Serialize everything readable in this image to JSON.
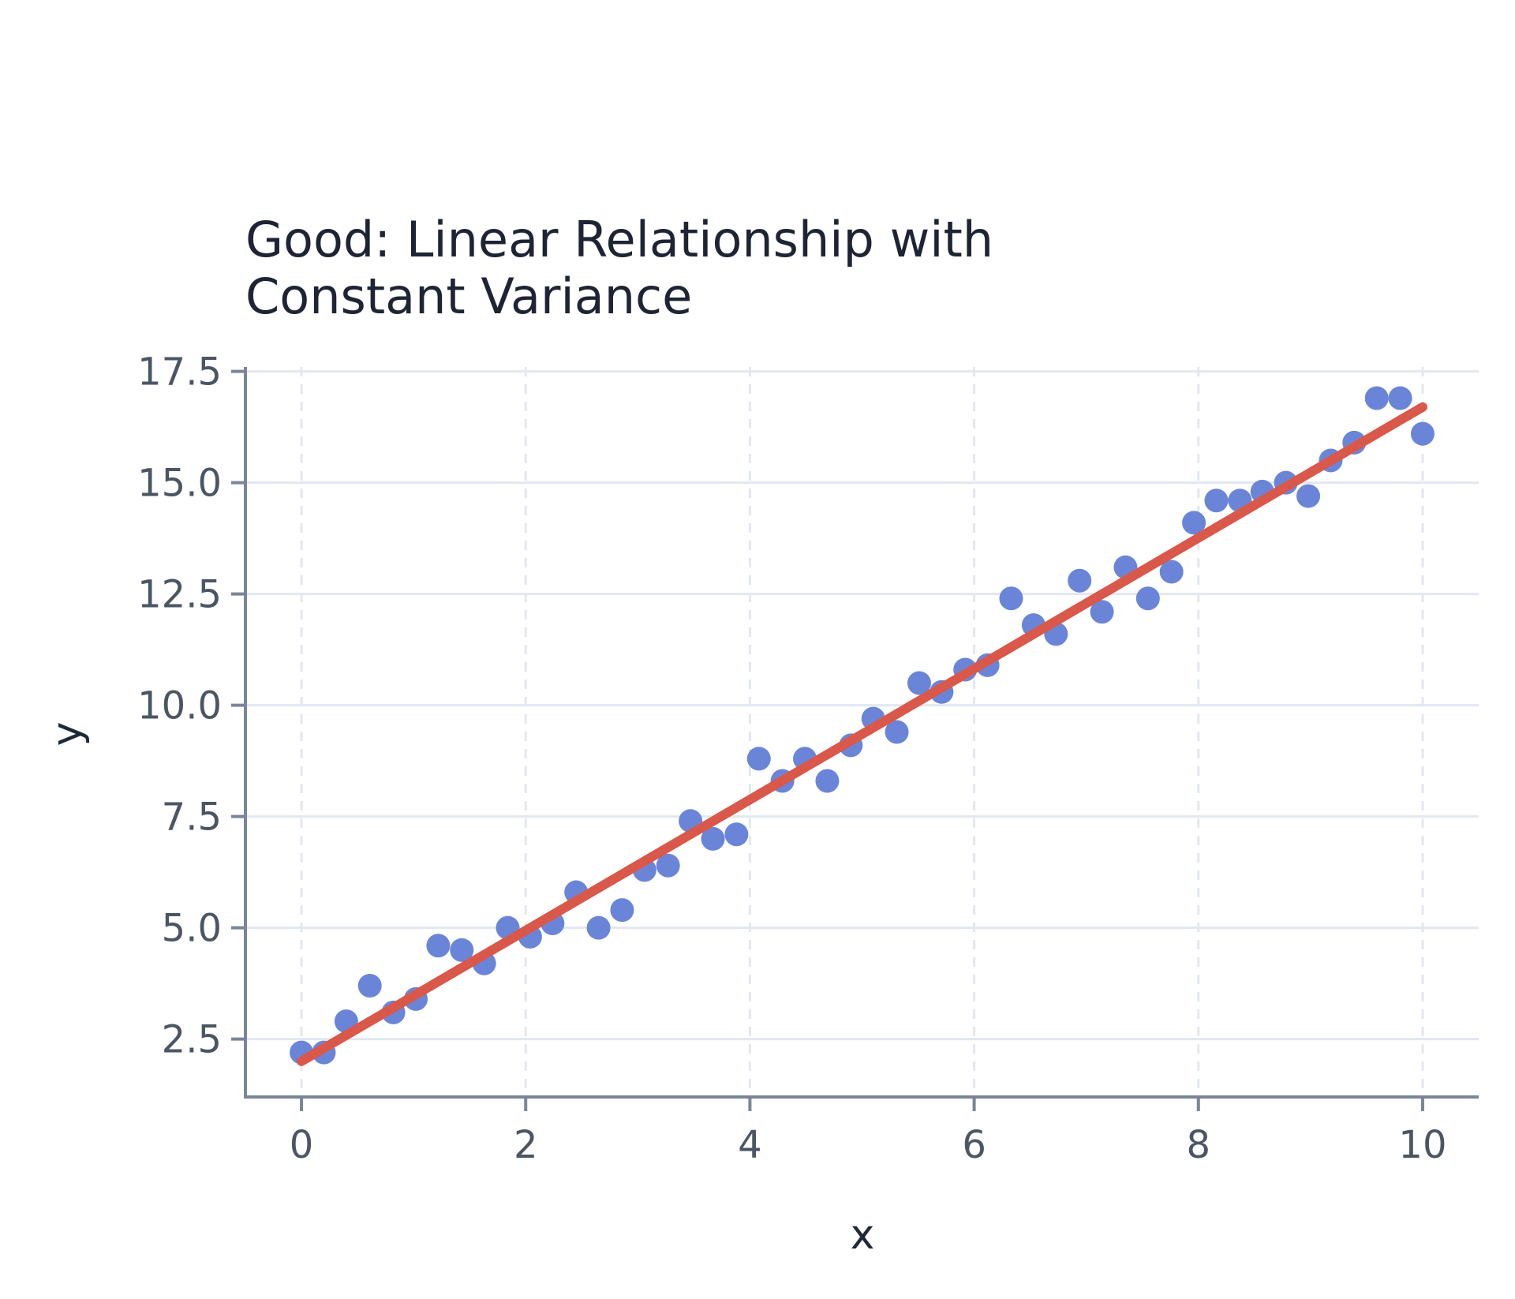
{
  "chart_data": {
    "type": "scatter",
    "title_lines": [
      "Good: Linear Relationship with",
      "Constant Variance"
    ],
    "xlabel": "x",
    "ylabel": "y",
    "xlim": [
      -0.5,
      10.5
    ],
    "ylim": [
      1.2,
      17.6
    ],
    "x_ticks": [
      0,
      2,
      4,
      6,
      8,
      10
    ],
    "x_tick_labels": [
      "0",
      "2",
      "4",
      "6",
      "8",
      "10"
    ],
    "y_ticks": [
      2.5,
      5.0,
      7.5,
      10.0,
      12.5,
      15.0,
      17.5
    ],
    "y_tick_labels": [
      "2.5",
      "5.0",
      "7.5",
      "10.0",
      "12.5",
      "15.0",
      "17.5"
    ],
    "grid": true,
    "colors": {
      "points": "#6a85d8",
      "fit_line": "#d9584a",
      "axis": "#7b8599",
      "grid": "#e3e7ef"
    },
    "points": {
      "x": [
        0.0,
        0.2,
        0.4,
        0.61,
        0.82,
        1.02,
        1.22,
        1.43,
        1.63,
        1.84,
        2.04,
        2.24,
        2.45,
        2.65,
        2.86,
        3.06,
        3.27,
        3.47,
        3.67,
        3.88,
        4.08,
        4.29,
        4.49,
        4.69,
        4.9,
        5.1,
        5.31,
        5.51,
        5.71,
        5.92,
        6.12,
        6.33,
        6.53,
        6.73,
        6.94,
        7.14,
        7.35,
        7.55,
        7.76,
        7.96,
        8.16,
        8.37,
        8.57,
        8.78,
        8.98,
        9.18,
        9.39,
        9.59,
        9.8,
        10.0
      ],
      "y": [
        2.2,
        2.2,
        2.9,
        3.7,
        3.1,
        3.4,
        4.6,
        4.5,
        4.2,
        5.0,
        4.8,
        5.1,
        5.8,
        5.0,
        5.4,
        6.3,
        6.4,
        7.4,
        7.0,
        7.1,
        8.8,
        8.3,
        8.8,
        8.3,
        9.1,
        9.7,
        9.4,
        10.5,
        10.3,
        10.8,
        10.9,
        12.4,
        11.8,
        11.6,
        12.8,
        12.1,
        13.1,
        12.4,
        13.0,
        14.1,
        14.6,
        14.6,
        14.8,
        15.0,
        14.7,
        15.5,
        15.9,
        16.9,
        16.9,
        16.1
      ]
    },
    "fit_line": {
      "x": [
        0,
        10
      ],
      "y": [
        2.0,
        16.7
      ]
    }
  }
}
